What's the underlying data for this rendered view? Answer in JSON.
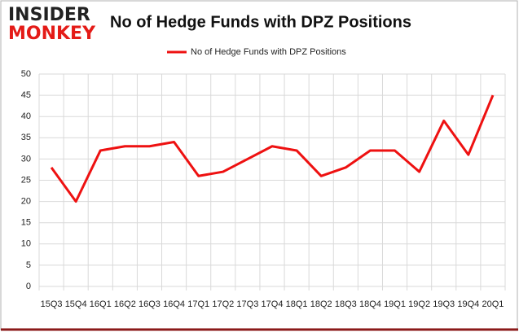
{
  "logo": {
    "top": "INSIDER",
    "bottom": "MONKEY"
  },
  "chart_data": {
    "type": "line",
    "title": "No of Hedge Funds with DPZ Positions",
    "categories": [
      "15Q3",
      "15Q4",
      "16Q1",
      "16Q2",
      "16Q3",
      "16Q4",
      "17Q1",
      "17Q2",
      "17Q3",
      "17Q4",
      "18Q1",
      "18Q2",
      "18Q3",
      "18Q4",
      "19Q1",
      "19Q2",
      "19Q3",
      "19Q4",
      "20Q1"
    ],
    "series": [
      {
        "name": "No of Hedge Funds with DPZ Positions",
        "color": "#ee1111",
        "values": [
          28,
          20,
          32,
          33,
          33,
          34,
          26,
          27,
          30,
          33,
          32,
          26,
          28,
          32,
          32,
          27,
          39,
          31,
          45
        ]
      }
    ],
    "ylim": [
      0,
      50
    ],
    "yticks": [
      0,
      5,
      10,
      15,
      20,
      25,
      30,
      35,
      40,
      45,
      50
    ],
    "grid": true,
    "legend": "top"
  }
}
